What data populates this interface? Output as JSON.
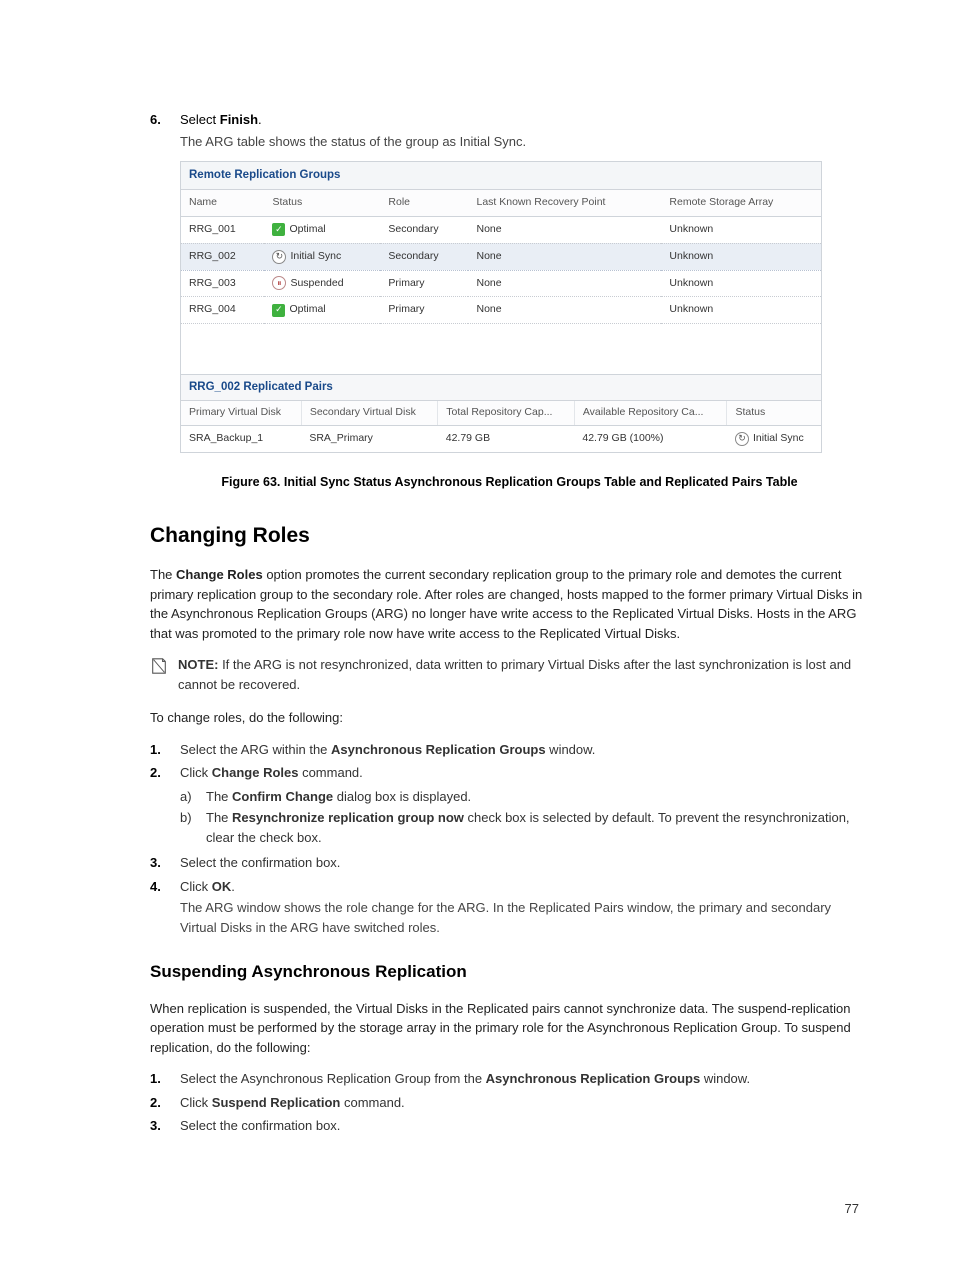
{
  "step6": {
    "num": "6.",
    "lead_prefix": "Select ",
    "lead_bold": "Finish",
    "lead_suffix": ".",
    "sub": "The ARG table shows the status of the group as Initial Sync."
  },
  "argPanel": {
    "title": "Remote Replication Groups",
    "headers": [
      "Name",
      "Status",
      "Role",
      "Last Known Recovery Point",
      "Remote Storage Array"
    ],
    "rows": [
      {
        "name": "RRG_001",
        "status": "Optimal",
        "icon": "opt",
        "role": "Secondary",
        "lkrp": "None",
        "rsa": "Unknown",
        "hl": false
      },
      {
        "name": "RRG_002",
        "status": "Initial Sync",
        "icon": "sync",
        "role": "Secondary",
        "lkrp": "None",
        "rsa": "Unknown",
        "hl": true
      },
      {
        "name": "RRG_003",
        "status": "Suspended",
        "icon": "susp",
        "role": "Primary",
        "lkrp": "None",
        "rsa": "Unknown",
        "hl": false
      },
      {
        "name": "RRG_004",
        "status": "Optimal",
        "icon": "opt",
        "role": "Primary",
        "lkrp": "None",
        "rsa": "Unknown",
        "hl": false
      }
    ],
    "pairsTitle": "RRG_002 Replicated Pairs",
    "pairsHeaders": [
      "Primary Virtual Disk",
      "Secondary Virtual Disk",
      "Total Repository Cap...",
      "Available Repository Ca...",
      "Status"
    ],
    "pairsRow": {
      "pvd": "SRA_Backup_1",
      "svd": "SRA_Primary",
      "trc": "42.79 GB",
      "arc": "42.79 GB (100%)",
      "status": "Initial Sync"
    }
  },
  "figureCaption": "Figure 63. Initial Sync Status Asynchronous Replication Groups Table and Replicated Pairs Table",
  "changingRoles": {
    "title": "Changing Roles",
    "para": {
      "p1a": "The ",
      "p1b": "Change Roles",
      "p1c": " option promotes the current secondary replication group to the primary role and demotes the current primary replication group to the secondary role. After roles are changed, hosts mapped to the former primary Virtual Disks in the Asynchronous Replication Groups (ARG) no longer have write access to the Replicated Virtual Disks. Hosts in the ARG that was promoted to the primary role now have write access to the Replicated Virtual Disks."
    },
    "note": {
      "label": "NOTE:",
      "text": " If the ARG is not resynchronized, data written to primary Virtual Disks after the last synchronization is lost and cannot be recovered."
    },
    "intro": "To change roles, do the following:",
    "steps": {
      "s1": {
        "num": "1.",
        "a": "Select the ARG within the ",
        "b": "Asynchronous Replication Groups",
        "c": " window."
      },
      "s2": {
        "num": "2.",
        "a": "Click ",
        "b": "Change Roles",
        "c": " command.",
        "sa": {
          "n": "a)",
          "a": "The ",
          "b": "Confirm Change",
          "c": " dialog box is displayed."
        },
        "sb": {
          "n": "b)",
          "a": "The ",
          "b": "Resynchronize replication group now",
          "c": " check box is selected by default. To prevent the resynchronization, clear the check box."
        }
      },
      "s3": {
        "num": "3.",
        "a": "Select the confirmation box."
      },
      "s4": {
        "num": "4.",
        "a": "Click ",
        "b": "OK",
        "c": ".",
        "sub": "The ARG window shows the role change for the ARG. In the Replicated Pairs window, the primary and secondary Virtual Disks in the ARG have switched roles."
      }
    }
  },
  "suspending": {
    "title": "Suspending Asynchronous Replication",
    "para": "When replication is suspended, the Virtual Disks in the Replicated pairs cannot synchronize data. The suspend-replication operation must be performed by the storage array in the primary role for the Asynchronous Replication Group. To suspend replication, do the following:",
    "steps": {
      "s1": {
        "num": "1.",
        "a": "Select the Asynchronous Replication Group from the ",
        "b": "Asynchronous Replication Groups",
        "c": " window."
      },
      "s2": {
        "num": "2.",
        "a": "Click ",
        "b": "Suspend Replication",
        "c": " command."
      },
      "s3": {
        "num": "3.",
        "a": "Select the confirmation box."
      }
    }
  },
  "pageNumber": "77"
}
